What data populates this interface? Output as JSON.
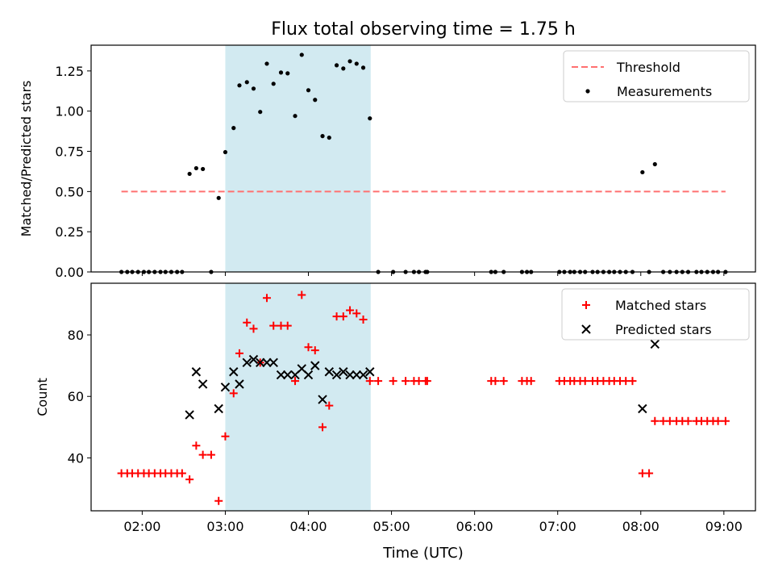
{
  "chart_data": {
    "title": "Flux total observing time = 1.75 h",
    "xlabel": "Time (UTC)",
    "x_ticks": [
      "02:00",
      "03:00",
      "04:00",
      "05:00",
      "06:00",
      "07:00",
      "08:00",
      "09:00"
    ],
    "x_tick_hours": [
      2,
      3,
      4,
      5,
      6,
      7,
      8,
      9
    ],
    "xlim": [
      1.385,
      9.38
    ],
    "shaded_interval": {
      "start": 3.0,
      "end": 4.75,
      "color": "#add8e6"
    },
    "panels": [
      {
        "type": "scatter",
        "ylabel": "Matched/Predicted stars",
        "ylim": [
          0,
          1.41
        ],
        "yticks": [
          0.0,
          0.25,
          0.5,
          0.75,
          1.0,
          1.25
        ],
        "ytick_labels": [
          "0.00",
          "0.25",
          "0.50",
          "0.75",
          "1.00",
          "1.25"
        ],
        "legend_position": "top-right",
        "series": [
          {
            "name": "Threshold",
            "kind": "dashed-line",
            "color": "#ff7070",
            "x": [
              1.75,
              9.02
            ],
            "y": [
              0.5,
              0.5
            ]
          },
          {
            "name": "Measurements",
            "kind": "dot",
            "color": "#000000",
            "x": [
              1.75,
              1.82,
              1.88,
              1.95,
              2.02,
              2.08,
              2.15,
              2.22,
              2.28,
              2.35,
              2.42,
              2.48,
              2.57,
              2.65,
              2.73,
              2.83,
              2.92,
              3.0,
              3.1,
              3.17,
              3.26,
              3.34,
              3.42,
              3.5,
              3.58,
              3.67,
              3.75,
              3.84,
              3.92,
              4.0,
              4.08,
              4.17,
              4.25,
              4.34,
              4.42,
              4.5,
              4.58,
              4.66,
              4.74,
              4.84,
              5.02,
              5.17,
              5.27,
              5.33,
              5.41,
              5.43,
              6.2,
              6.25,
              6.35,
              6.57,
              6.63,
              6.68,
              7.02,
              7.08,
              7.15,
              7.2,
              7.27,
              7.33,
              7.42,
              7.48,
              7.55,
              7.62,
              7.68,
              7.75,
              7.82,
              7.9,
              8.02,
              8.1,
              8.17,
              8.27,
              8.35,
              8.43,
              8.5,
              8.57,
              8.67,
              8.73,
              8.8,
              8.87,
              8.93,
              9.02
            ],
            "y": [
              0,
              0,
              0,
              0,
              0,
              0,
              0,
              0,
              0,
              0,
              0,
              0,
              0.61,
              0.645,
              0.64,
              0,
              0.46,
              0.745,
              0.895,
              1.16,
              1.18,
              1.14,
              0.995,
              1.295,
              1.17,
              1.24,
              1.235,
              0.97,
              1.35,
              1.13,
              1.07,
              0.845,
              0.835,
              1.285,
              1.265,
              1.31,
              1.295,
              1.27,
              0.955,
              0,
              0,
              0,
              0,
              0,
              0,
              0,
              0,
              0,
              0,
              0,
              0,
              0,
              0,
              0,
              0,
              0,
              0,
              0,
              0,
              0,
              0,
              0,
              0,
              0,
              0,
              0,
              0.62,
              0,
              0.67,
              0,
              0,
              0,
              0,
              0,
              0,
              0,
              0,
              0,
              0,
              0
            ]
          }
        ]
      },
      {
        "type": "scatter",
        "ylabel": "Count",
        "ylim": [
          22.8,
          96.8
        ],
        "yticks": [
          40,
          60,
          80
        ],
        "ytick_labels": [
          "40",
          "60",
          "80"
        ],
        "legend_position": "top-right",
        "series": [
          {
            "name": "Matched stars",
            "kind": "plus",
            "color": "#ff0000",
            "x": [
              1.75,
              1.82,
              1.88,
              1.95,
              2.02,
              2.08,
              2.15,
              2.22,
              2.28,
              2.35,
              2.42,
              2.48,
              2.57,
              2.65,
              2.73,
              2.83,
              2.92,
              3.0,
              3.1,
              3.17,
              3.26,
              3.34,
              3.42,
              3.5,
              3.58,
              3.67,
              3.75,
              3.84,
              3.92,
              4.0,
              4.08,
              4.17,
              4.25,
              4.34,
              4.42,
              4.5,
              4.58,
              4.66,
              4.74,
              4.84,
              5.02,
              5.17,
              5.27,
              5.33,
              5.41,
              5.43,
              6.2,
              6.25,
              6.35,
              6.57,
              6.63,
              6.68,
              7.02,
              7.08,
              7.15,
              7.2,
              7.27,
              7.33,
              7.42,
              7.48,
              7.55,
              7.62,
              7.68,
              7.75,
              7.82,
              7.9,
              8.02,
              8.1,
              8.17,
              8.27,
              8.35,
              8.43,
              8.5,
              8.57,
              8.67,
              8.73,
              8.8,
              8.87,
              8.93,
              9.02
            ],
            "y": [
              35,
              35,
              35,
              35,
              35,
              35,
              35,
              35,
              35,
              35,
              35,
              35,
              33,
              44,
              41,
              41,
              26,
              47,
              61,
              74,
              84,
              82,
              71,
              92,
              83,
              83,
              83,
              65,
              93,
              76,
              75,
              50,
              57,
              86,
              86,
              88,
              87,
              85,
              65,
              65,
              65,
              65,
              65,
              65,
              65,
              65,
              65,
              65,
              65,
              65,
              65,
              65,
              65,
              65,
              65,
              65,
              65,
              65,
              65,
              65,
              65,
              65,
              65,
              65,
              65,
              65,
              35,
              35,
              52,
              52,
              52,
              52,
              52,
              52,
              52,
              52,
              52,
              52,
              52,
              52
            ]
          },
          {
            "name": "Predicted stars",
            "kind": "cross",
            "color": "#000000",
            "x": [
              2.57,
              2.65,
              2.73,
              2.92,
              3.0,
              3.1,
              3.17,
              3.26,
              3.34,
              3.42,
              3.5,
              3.58,
              3.67,
              3.75,
              3.84,
              3.92,
              4.0,
              4.08,
              4.17,
              4.25,
              4.34,
              4.42,
              4.5,
              4.58,
              4.66,
              4.74,
              8.02,
              8.17
            ],
            "y": [
              54,
              68,
              64,
              56,
              63,
              68,
              64,
              71,
              72,
              71,
              71,
              71,
              67,
              67,
              67,
              69,
              67,
              70,
              59,
              68,
              67,
              68,
              67,
              67,
              67,
              68,
              56,
              77
            ]
          }
        ]
      }
    ]
  }
}
